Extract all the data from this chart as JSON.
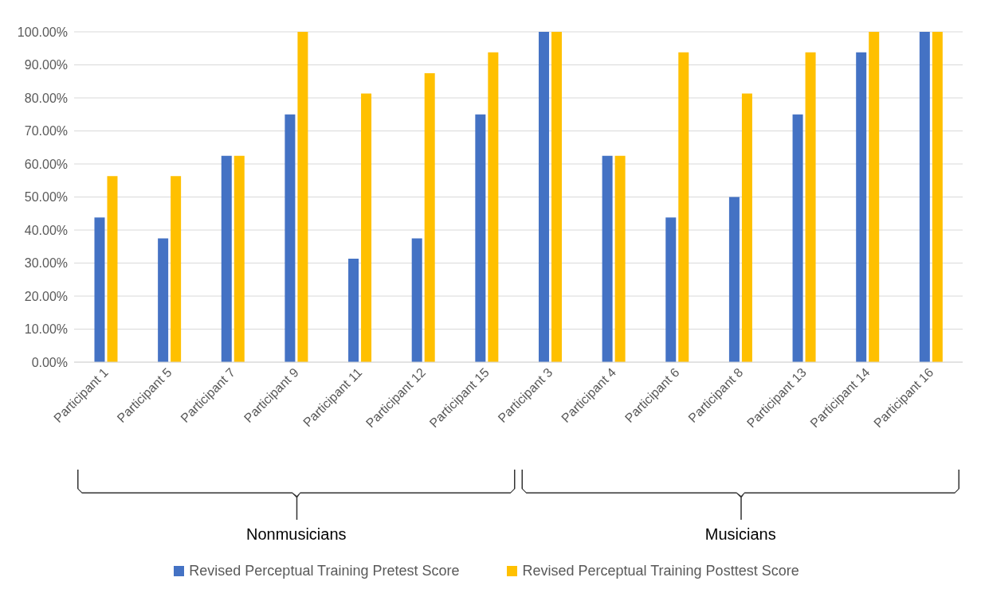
{
  "chart_data": {
    "type": "bar",
    "categories": [
      "Participant 1",
      "Participant 5",
      "Participant 7",
      "Participant 9",
      "Participant 11",
      "Participant 12",
      "Participant 15",
      "Participant 3",
      "Participant 4",
      "Participant 6",
      "Participant 8",
      "Participant 13",
      "Participant 14",
      "Participant 16"
    ],
    "series": [
      {
        "name": "Revised Perceptual Training Pretest Score",
        "color": "#4472c4",
        "values": [
          43.8,
          37.5,
          62.5,
          75,
          31.3,
          37.5,
          75,
          100,
          62.5,
          43.8,
          50,
          75,
          93.8,
          100
        ]
      },
      {
        "name": "Revised Perceptual Training Posttest Score",
        "color": "#ffc000",
        "values": [
          56.3,
          56.3,
          62.5,
          100,
          81.3,
          87.5,
          93.8,
          100,
          62.5,
          93.8,
          81.3,
          93.8,
          100,
          100
        ]
      }
    ],
    "ylim": [
      0,
      100
    ],
    "yticks": [
      {
        "value": 0,
        "label": "0.00%"
      },
      {
        "value": 10,
        "label": "10.00%"
      },
      {
        "value": 20,
        "label": "20.00%"
      },
      {
        "value": 30,
        "label": "30.00%"
      },
      {
        "value": 40,
        "label": "40.00%"
      },
      {
        "value": 50,
        "label": "50.00%"
      },
      {
        "value": 60,
        "label": "60.00%"
      },
      {
        "value": 70,
        "label": "70.00%"
      },
      {
        "value": 80,
        "label": "80.00%"
      },
      {
        "value": 90,
        "label": "90.00%"
      },
      {
        "value": 100,
        "label": "100.00%"
      }
    ],
    "grid": "y",
    "legend": "bottom",
    "annotations": [
      "Nonmusicians",
      "Musicians"
    ]
  }
}
